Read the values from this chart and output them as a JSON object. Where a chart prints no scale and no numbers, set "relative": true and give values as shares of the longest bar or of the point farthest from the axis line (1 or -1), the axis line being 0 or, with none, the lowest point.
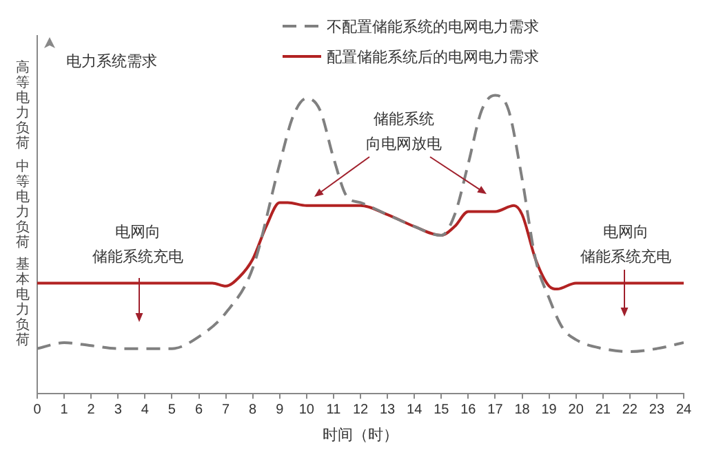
{
  "chart_data": {
    "type": "line",
    "relative": true,
    "ylabel": "电力系统需求",
    "xlabel": "时间（时）",
    "xlim": [
      0,
      24
    ],
    "xticks": [
      0,
      1,
      2,
      3,
      4,
      5,
      6,
      7,
      8,
      9,
      10,
      11,
      12,
      13,
      14,
      15,
      16,
      17,
      18,
      19,
      20,
      21,
      22,
      23,
      24
    ],
    "grid": false,
    "legend": "top",
    "marker": "none",
    "annotations": [
      "高等电力负荷",
      "中等电力负荷",
      "基本电力负荷",
      "储能系统",
      "向电网放电",
      "电网向",
      "储能系统充电",
      "电网向",
      "储能系统充电"
    ],
    "series": [
      {
        "name": "不配置储能系统的电网电力需求",
        "color": "#808080",
        "line_style": "dashed",
        "x": [
          0,
          1,
          2,
          3,
          4,
          5,
          6,
          7,
          8,
          9,
          9.5,
          10,
          10.5,
          11,
          11.5,
          12,
          13,
          14,
          15,
          15.5,
          16,
          16.5,
          17,
          17.5,
          18,
          18.5,
          19,
          19.5,
          20,
          21,
          22,
          23,
          24
        ],
        "values": [
          0.15,
          0.17,
          0.16,
          0.15,
          0.15,
          0.15,
          0.19,
          0.27,
          0.42,
          0.77,
          0.93,
          0.99,
          0.95,
          0.79,
          0.66,
          0.64,
          0.6,
          0.56,
          0.53,
          0.6,
          0.77,
          0.95,
          1.0,
          0.95,
          0.72,
          0.45,
          0.32,
          0.22,
          0.18,
          0.15,
          0.14,
          0.15,
          0.17
        ]
      },
      {
        "name": "配置储能系统后的电网电力需求",
        "color": "#b22222",
        "line_style": "solid",
        "x": [
          0,
          2,
          4,
          6,
          6.5,
          7,
          7.5,
          8,
          8.5,
          9,
          9.3,
          10,
          11,
          12,
          13,
          14,
          15,
          15.5,
          16,
          17,
          17.7,
          18,
          18.5,
          19,
          19.3,
          20,
          22,
          24
        ],
        "values": [
          0.37,
          0.37,
          0.37,
          0.37,
          0.37,
          0.36,
          0.39,
          0.45,
          0.56,
          0.64,
          0.64,
          0.63,
          0.63,
          0.63,
          0.6,
          0.56,
          0.53,
          0.56,
          0.61,
          0.61,
          0.63,
          0.6,
          0.45,
          0.36,
          0.35,
          0.37,
          0.37,
          0.37
        ]
      }
    ]
  }
}
